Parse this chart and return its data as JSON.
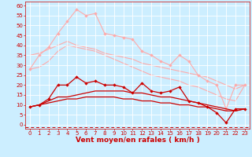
{
  "background_color": "#cceeff",
  "grid_color": "#ffffff",
  "xlabel": "Vent moyen/en rafales ( km/h )",
  "xlabel_color": "#cc0000",
  "xlabel_fontsize": 6.5,
  "tick_color": "#cc0000",
  "tick_fontsize": 5.0,
  "ylim": [
    -2,
    62
  ],
  "xlim": [
    -0.5,
    23.5
  ],
  "yticks": [
    0,
    5,
    10,
    15,
    20,
    25,
    30,
    35,
    40,
    45,
    50,
    55,
    60
  ],
  "xticks": [
    0,
    1,
    2,
    3,
    4,
    5,
    6,
    7,
    8,
    9,
    10,
    11,
    12,
    13,
    14,
    15,
    16,
    17,
    18,
    19,
    20,
    21,
    22,
    23
  ],
  "series": [
    {
      "y": [
        28,
        35,
        39,
        46,
        52,
        58,
        55,
        56,
        46,
        45,
        44,
        43,
        37,
        35,
        32,
        30,
        35,
        32,
        25,
        22,
        20,
        8,
        20,
        20
      ],
      "color": "#ffaaaa",
      "marker": "D",
      "markersize": 1.8,
      "linewidth": 0.8,
      "zorder": 2
    },
    {
      "y": [
        35,
        36,
        38,
        40,
        42,
        40,
        39,
        38,
        36,
        35,
        34,
        33,
        31,
        30,
        29,
        28,
        27,
        26,
        25,
        24,
        22,
        20,
        18,
        20
      ],
      "color": "#ffaaaa",
      "marker": null,
      "markersize": 0,
      "linewidth": 0.8,
      "zorder": 1
    },
    {
      "y": [
        28,
        29,
        32,
        37,
        40,
        39,
        38,
        37,
        35,
        33,
        31,
        29,
        27,
        25,
        24,
        23,
        22,
        20,
        19,
        17,
        15,
        13,
        12,
        20
      ],
      "color": "#ffaaaa",
      "marker": null,
      "markersize": 0,
      "linewidth": 0.8,
      "zorder": 1
    },
    {
      "y": [
        9,
        10,
        13,
        20,
        20,
        24,
        21,
        22,
        20,
        20,
        19,
        16,
        21,
        17,
        16,
        17,
        19,
        12,
        11,
        9,
        6,
        1,
        8,
        8
      ],
      "color": "#cc0000",
      "marker": "D",
      "markersize": 1.8,
      "linewidth": 0.9,
      "zorder": 4
    },
    {
      "y": [
        9,
        10,
        12,
        14,
        14,
        15,
        16,
        17,
        17,
        17,
        17,
        16,
        16,
        15,
        14,
        14,
        13,
        12,
        11,
        10,
        9,
        8,
        7,
        8
      ],
      "color": "#cc0000",
      "marker": null,
      "markersize": 0,
      "linewidth": 0.9,
      "zorder": 3
    },
    {
      "y": [
        9,
        10,
        11,
        12,
        13,
        13,
        14,
        14,
        14,
        14,
        13,
        13,
        12,
        12,
        11,
        11,
        10,
        10,
        9,
        9,
        8,
        7,
        7,
        8
      ],
      "color": "#cc0000",
      "marker": null,
      "markersize": 0,
      "linewidth": 0.9,
      "zorder": 3
    }
  ],
  "dashed_line_y": -1.2,
  "dashed_color": "#cc0000",
  "dashed_linewidth": 0.7,
  "figsize": [
    3.2,
    2.0
  ],
  "dpi": 100
}
